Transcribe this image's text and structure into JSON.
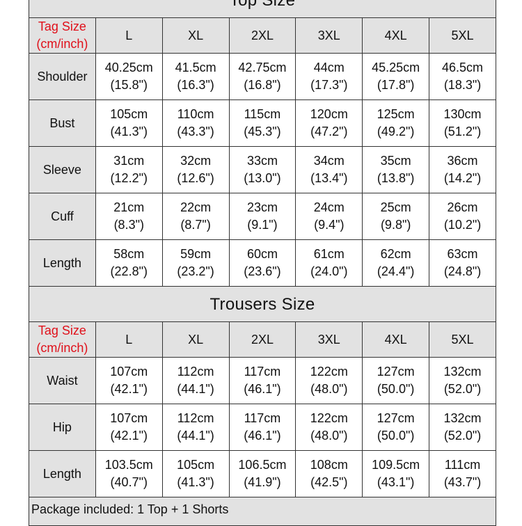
{
  "tag_label": [
    "Tag Size",
    "(cm/inch)"
  ],
  "sizes": [
    "L",
    "XL",
    "2XL",
    "3XL",
    "4XL",
    "5XL"
  ],
  "sections": [
    {
      "title": "Top  Size",
      "rows": [
        {
          "label": "Shoulder",
          "cells": [
            [
              "40.25cm",
              "(15.8\")"
            ],
            [
              "41.5cm",
              "(16.3\")"
            ],
            [
              "42.75cm",
              "(16.8\")"
            ],
            [
              "44cm",
              "(17.3\")"
            ],
            [
              "45.25cm",
              "(17.8\")"
            ],
            [
              "46.5cm",
              "(18.3\")"
            ]
          ]
        },
        {
          "label": "Bust",
          "cells": [
            [
              "105cm",
              "(41.3\")"
            ],
            [
              "110cm",
              "(43.3\")"
            ],
            [
              "115cm",
              "(45.3\")"
            ],
            [
              "120cm",
              "(47.2\")"
            ],
            [
              "125cm",
              "(49.2\")"
            ],
            [
              "130cm",
              "(51.2\")"
            ]
          ]
        },
        {
          "label": "Sleeve",
          "cells": [
            [
              "31cm",
              "(12.2\")"
            ],
            [
              "32cm",
              "(12.6\")"
            ],
            [
              "33cm",
              "(13.0\")"
            ],
            [
              "34cm",
              "(13.4\")"
            ],
            [
              "35cm",
              "(13.8\")"
            ],
            [
              "36cm",
              "(14.2\")"
            ]
          ]
        },
        {
          "label": "Cuff",
          "cells": [
            [
              "21cm",
              "(8.3\")"
            ],
            [
              "22cm",
              "(8.7\")"
            ],
            [
              "23cm",
              "(9.1\")"
            ],
            [
              "24cm",
              "(9.4\")"
            ],
            [
              "25cm",
              "(9.8\")"
            ],
            [
              "26cm",
              "(10.2\")"
            ]
          ]
        },
        {
          "label": "Length",
          "cells": [
            [
              "58cm",
              "(22.8\")"
            ],
            [
              "59cm",
              "(23.2\")"
            ],
            [
              "60cm",
              "(23.6\")"
            ],
            [
              "61cm",
              "(24.0\")"
            ],
            [
              "62cm",
              "(24.4\")"
            ],
            [
              "63cm",
              "(24.8\")"
            ]
          ]
        }
      ]
    },
    {
      "title": "Trousers  Size",
      "rows": [
        {
          "label": "Waist",
          "cells": [
            [
              "107cm",
              "(42.1\")"
            ],
            [
              "112cm",
              "(44.1\")"
            ],
            [
              "117cm",
              "(46.1\")"
            ],
            [
              "122cm",
              "(48.0\")"
            ],
            [
              "127cm",
              "(50.0\")"
            ],
            [
              "132cm",
              "(52.0\")"
            ]
          ]
        },
        {
          "label": "Hip",
          "cells": [
            [
              "107cm",
              "(42.1\")"
            ],
            [
              "112cm",
              "(44.1\")"
            ],
            [
              "117cm",
              "(46.1\")"
            ],
            [
              "122cm",
              "(48.0\")"
            ],
            [
              "127cm",
              "(50.0\")"
            ],
            [
              "132cm",
              "(52.0\")"
            ]
          ]
        },
        {
          "label": "Length",
          "cells": [
            [
              "103.5cm",
              "(40.7\")"
            ],
            [
              "105cm",
              "(41.3\")"
            ],
            [
              "106.5cm",
              "(41.9\")"
            ],
            [
              "108cm",
              "(42.5\")"
            ],
            [
              "109.5cm",
              "(43.1\")"
            ],
            [
              "111cm",
              "(43.7\")"
            ]
          ]
        }
      ]
    }
  ],
  "package": "Package included: 1  Top + 1 Shorts",
  "colors": {
    "tag_label": "#e0101a",
    "header_bg": "#e2e2e2",
    "border": "#333333"
  }
}
